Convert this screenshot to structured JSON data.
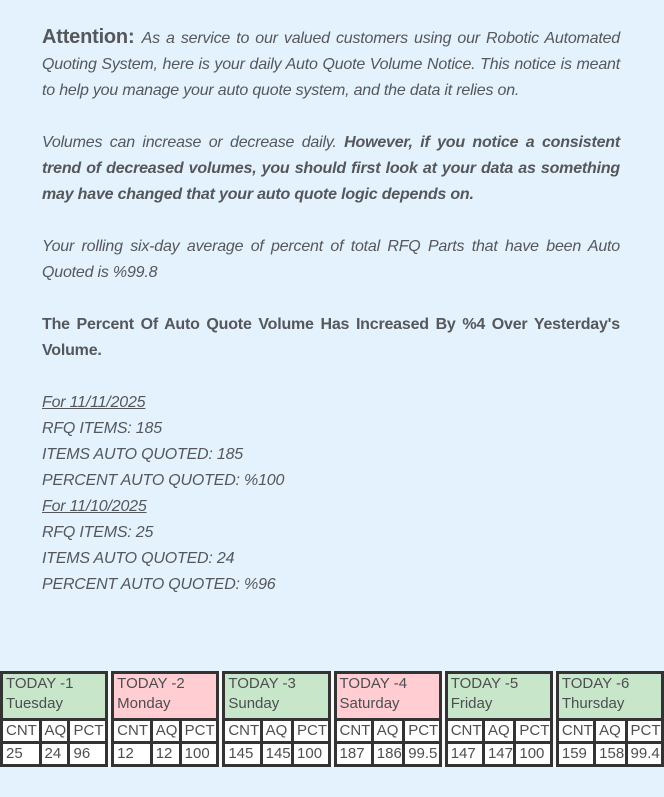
{
  "notice": {
    "attention_label": "Attention: ",
    "intro": "As a service to our valued customers using our Robotic Automated Quoting System, here is your daily Auto Quote Volume Notice. This notice is meant to help you manage your auto quote system, and the data it relies on.",
    "volumes_normal": "Volumes can increase or decrease daily. ",
    "volumes_bold": "However, if you notice a consistent trend of decreased volumes, you should first look at your data as something may have changed that your auto quote logic depends on.",
    "rolling_average": "Your rolling six-day average of percent of total RFQ Parts that have been Auto Quoted is %99.8",
    "volume_change": "The Percent Of Auto Quote Volume Has Increased By %4 Over Yesterday's Volume."
  },
  "daily_details": [
    {
      "date_heading": "For 11/11/2025",
      "lines": [
        "RFQ ITEMS: 185",
        "ITEMS AUTO QUOTED: 185",
        "PERCENT AUTO QUOTED: %100"
      ]
    },
    {
      "date_heading": "For 11/10/2025",
      "lines": [
        "RFQ ITEMS: 25",
        "ITEMS AUTO QUOTED: 24",
        "PERCENT AUTO QUOTED: %96"
      ]
    }
  ],
  "table": {
    "columns": [
      "CNT",
      "AQ",
      "PCT"
    ],
    "days": [
      {
        "label": "TODAY -1",
        "day": "Tuesday",
        "color": "#c8e6c9",
        "cnt": "25",
        "aq": "24",
        "pct": "96"
      },
      {
        "label": "TODAY -2",
        "day": "Monday",
        "color": "#ffcdd2",
        "cnt": "12",
        "aq": "12",
        "pct": "100"
      },
      {
        "label": "TODAY -3",
        "day": "Sunday",
        "color": "#c8e6c9",
        "cnt": "145",
        "aq": "145",
        "pct": "100"
      },
      {
        "label": "TODAY -4",
        "day": "Saturday",
        "color": "#ffcdd2",
        "cnt": "187",
        "aq": "186",
        "pct": "99.5"
      },
      {
        "label": "TODAY -5",
        "day": "Friday",
        "color": "#c8e6c9",
        "cnt": "147",
        "aq": "147",
        "pct": "100"
      },
      {
        "label": "TODAY -6",
        "day": "Thursday",
        "color": "#c8e6c9",
        "cnt": "159",
        "aq": "158",
        "pct": "99.4"
      }
    ]
  },
  "colors": {
    "page_background": "#e3f2fd",
    "increase_green": "#c8e6c9",
    "decrease_pink": "#ffcdd2",
    "table_frame": "#333333",
    "cell_background": "#ffffff",
    "body_text": "#55575b"
  }
}
